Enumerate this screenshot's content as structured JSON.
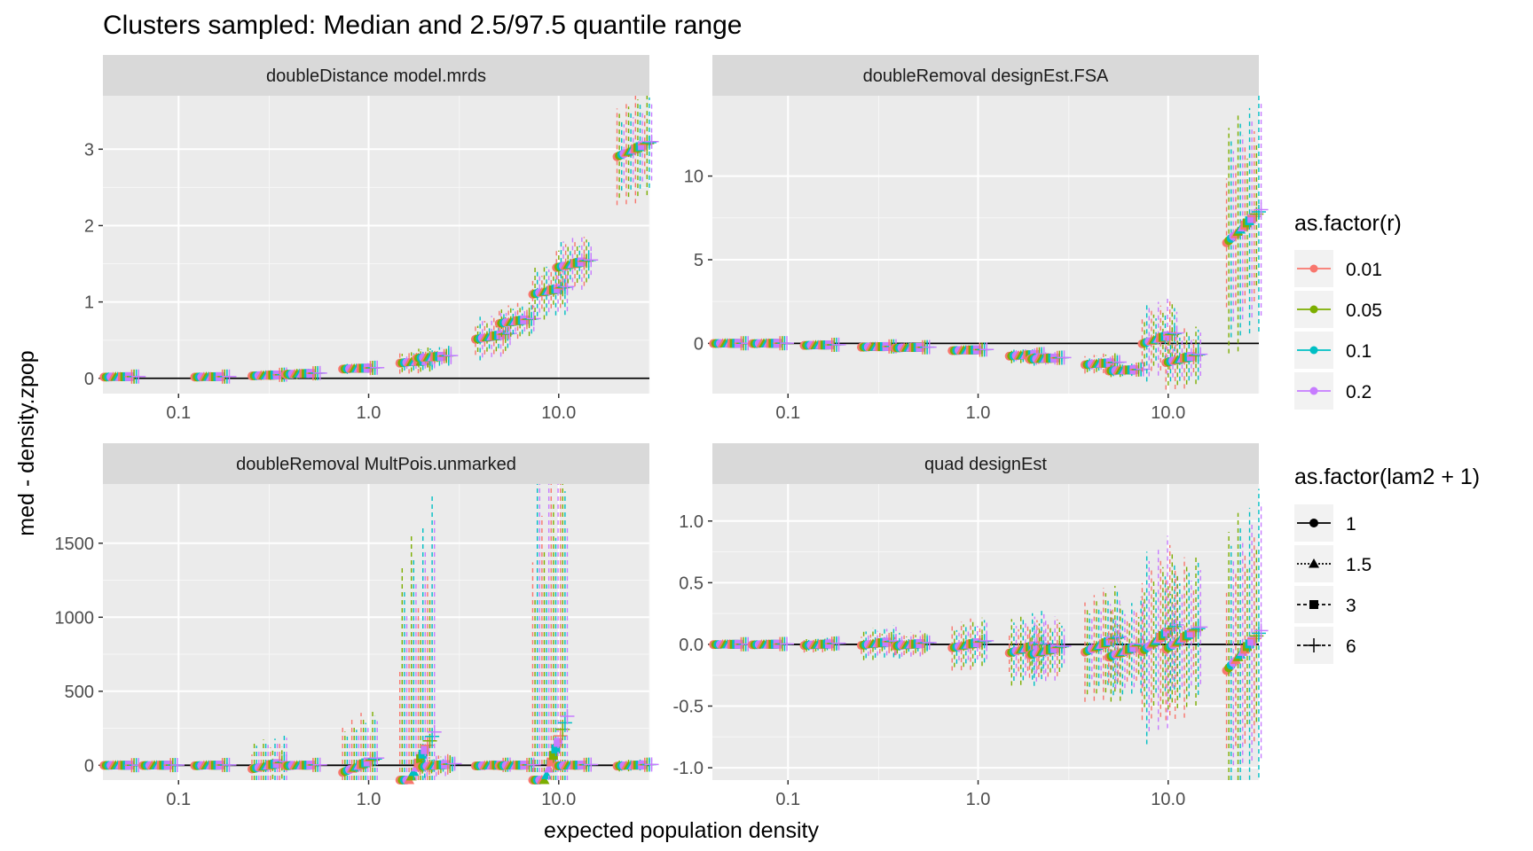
{
  "title": "Clusters sampled: Median and 2.5/97.5 quantile range",
  "xlabel": "expected population density",
  "ylabel": "med - density.zpop",
  "legend_r": {
    "title": "as.factor(r)",
    "entries": [
      {
        "label": "0.01",
        "color": "#F8766D"
      },
      {
        "label": "0.05",
        "color": "#7CAE00"
      },
      {
        "label": "0.1",
        "color": "#00BFC4"
      },
      {
        "label": "0.2",
        "color": "#C77CFF"
      }
    ]
  },
  "legend_lam": {
    "title": "as.factor(lam2 + 1)",
    "entries": [
      {
        "label": "1",
        "shape": "circle"
      },
      {
        "label": "1.5",
        "shape": "triangle"
      },
      {
        "label": "3",
        "shape": "square"
      },
      {
        "label": "6",
        "shape": "plus"
      }
    ]
  },
  "chart_data": [
    {
      "type": "scatter",
      "panel": "doubleDistance model.mrds",
      "x_scale": "log10",
      "xlim": [
        0.04,
        30
      ],
      "ylim": [
        -0.2,
        3.7
      ],
      "x_ticks": [
        "0.1",
        "1.0",
        "10.0"
      ],
      "y_ticks": [
        "0",
        "1",
        "2",
        "3"
      ],
      "hline": 0,
      "groups": [
        {
          "x": 0.05,
          "med": 0.02,
          "spread": 0.02
        },
        {
          "x": 0.15,
          "med": 0.02,
          "spread": 0.02
        },
        {
          "x": 0.3,
          "med": 0.04,
          "spread": 0.05
        },
        {
          "x": 0.45,
          "med": 0.06,
          "spread": 0.05
        },
        {
          "x": 0.9,
          "med": 0.13,
          "spread": 0.05
        },
        {
          "x": 1.8,
          "med": 0.22,
          "spread": 0.12
        },
        {
          "x": 2.2,
          "med": 0.28,
          "spread": 0.1
        },
        {
          "x": 4.5,
          "med": 0.55,
          "spread": 0.22
        },
        {
          "x": 6.0,
          "med": 0.75,
          "spread": 0.18
        },
        {
          "x": 9.0,
          "med": 1.15,
          "spread": 0.28
        },
        {
          "x": 12.0,
          "med": 1.5,
          "spread": 0.28
        },
        {
          "x": 25.0,
          "med": 3.0,
          "spread": 0.55
        }
      ]
    },
    {
      "type": "scatter",
      "panel": "doubleRemoval designEst.FSA",
      "x_scale": "log10",
      "xlim": [
        0.04,
        30
      ],
      "ylim": [
        -3,
        14.8
      ],
      "x_ticks": [
        "0.1",
        "1.0",
        "10.0"
      ],
      "y_ticks": [
        "0",
        "5",
        "10"
      ],
      "hline": 0,
      "groups": [
        {
          "x": 0.05,
          "med": 0.0,
          "spread": 0.05
        },
        {
          "x": 0.08,
          "med": 0.0,
          "spread": 0.08
        },
        {
          "x": 0.15,
          "med": -0.1,
          "spread": 0.12
        },
        {
          "x": 0.3,
          "med": -0.2,
          "spread": 0.15
        },
        {
          "x": 0.45,
          "med": -0.25,
          "spread": 0.15
        },
        {
          "x": 0.9,
          "med": -0.4,
          "spread": 0.2
        },
        {
          "x": 1.8,
          "med": -0.7,
          "spread": 0.35
        },
        {
          "x": 2.3,
          "med": -0.9,
          "spread": 0.3
        },
        {
          "x": 4.5,
          "med": -1.2,
          "spread": 0.45
        },
        {
          "x": 6.0,
          "med": -1.6,
          "spread": 0.3
        },
        {
          "x": 9.0,
          "med": 0.3,
          "spread": 1.8
        },
        {
          "x": 12.0,
          "med": -0.9,
          "spread": 1.4
        },
        {
          "x": 25.0,
          "med": 7.0,
          "spread": 5.5
        }
      ]
    },
    {
      "type": "scatter",
      "panel": "doubleRemoval MultPois.unmarked",
      "x_scale": "log10",
      "xlim": [
        0.04,
        30
      ],
      "ylim": [
        -100,
        1900
      ],
      "x_ticks": [
        "0.1",
        "1.0",
        "10.0"
      ],
      "y_ticks": [
        "0",
        "500",
        "1000",
        "1500"
      ],
      "hline": 0,
      "groups": [
        {
          "x": 0.05,
          "med": 0,
          "spread": 5
        },
        {
          "x": 0.08,
          "med": 0,
          "spread": 10
        },
        {
          "x": 0.15,
          "med": 0,
          "spread": 15
        },
        {
          "x": 0.3,
          "med": 0,
          "spread": 140
        },
        {
          "x": 0.45,
          "med": 0,
          "spread": 20
        },
        {
          "x": 0.9,
          "med": 0,
          "spread": 270
        },
        {
          "x": 1.8,
          "med": 0,
          "spread": 1250
        },
        {
          "x": 2.3,
          "med": 0,
          "spread": 60
        },
        {
          "x": 4.5,
          "med": 0,
          "spread": 25
        },
        {
          "x": 6.0,
          "med": 0,
          "spread": 20
        },
        {
          "x": 9.0,
          "med": 0,
          "spread": 1840
        },
        {
          "x": 12.0,
          "med": 0,
          "spread": 25
        },
        {
          "x": 25.0,
          "med": 0,
          "spread": 30
        }
      ]
    },
    {
      "type": "scatter",
      "panel": "quad designEst",
      "x_scale": "log10",
      "xlim": [
        0.04,
        30
      ],
      "ylim": [
        -1.1,
        1.3
      ],
      "x_ticks": [
        "0.1",
        "1.0",
        "10.0"
      ],
      "y_ticks": [
        "1.0",
        "0.5",
        "0.0",
        "-0.5",
        "-1.0"
      ],
      "hline": 0,
      "groups": [
        {
          "x": 0.05,
          "med": 0.0,
          "spread": 0.01
        },
        {
          "x": 0.08,
          "med": 0.0,
          "spread": 0.02
        },
        {
          "x": 0.15,
          "med": 0.0,
          "spread": 0.05
        },
        {
          "x": 0.3,
          "med": 0.01,
          "spread": 0.1
        },
        {
          "x": 0.45,
          "med": 0.0,
          "spread": 0.08
        },
        {
          "x": 0.9,
          "med": 0.0,
          "spread": 0.16
        },
        {
          "x": 1.8,
          "med": -0.03,
          "spread": 0.22
        },
        {
          "x": 2.3,
          "med": -0.05,
          "spread": 0.2
        },
        {
          "x": 4.5,
          "med": 0.0,
          "spread": 0.35
        },
        {
          "x": 6.0,
          "med": -0.05,
          "spread": 0.3
        },
        {
          "x": 9.0,
          "med": 0.05,
          "spread": 0.6
        },
        {
          "x": 12.0,
          "med": 0.05,
          "spread": 0.5
        },
        {
          "x": 25.0,
          "med": -0.05,
          "spread": 0.9
        }
      ]
    }
  ]
}
